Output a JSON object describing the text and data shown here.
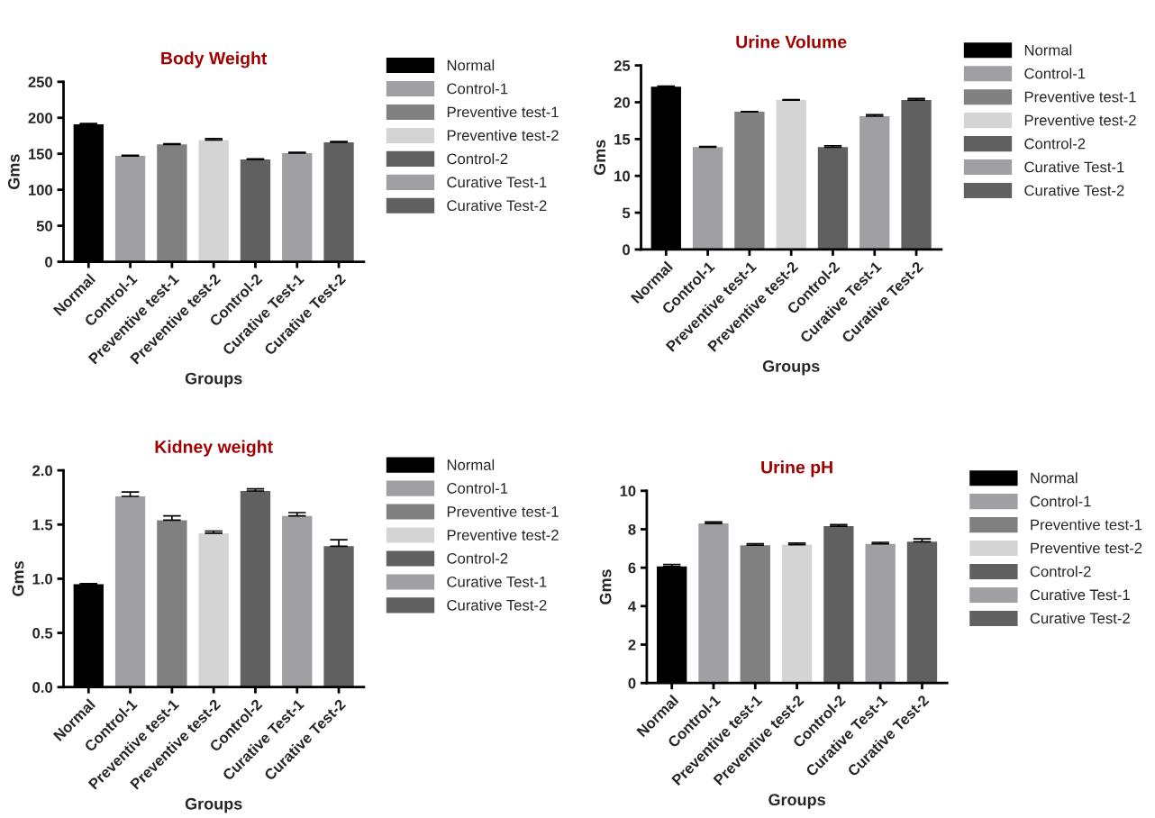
{
  "chart_data": [
    {
      "type": "bar",
      "title": "Body Weight",
      "xlabel": "Groups",
      "ylabel": "Gms",
      "categories": [
        "Normal",
        "Control-1",
        "Preventive test-1",
        "Preventive test-2",
        "Control-2",
        "Curative Test-1",
        "Curative Test-2"
      ],
      "ylim": [
        0,
        250
      ],
      "yticks": [
        0,
        50,
        100,
        150,
        200,
        250
      ],
      "legend": "right",
      "series": [
        {
          "name": "Normal",
          "color": "#000000",
          "values": [
            191,
            null,
            null,
            null,
            null,
            null,
            null
          ],
          "errors": [
            1,
            null,
            null,
            null,
            null,
            null,
            null
          ]
        },
        {
          "name": "Control-1",
          "color": "#a0a0a4",
          "values": [
            null,
            147,
            null,
            null,
            null,
            null,
            null
          ],
          "errors": [
            null,
            1,
            null,
            null,
            null,
            null,
            null
          ]
        },
        {
          "name": "Preventive test-1",
          "color": "#808080",
          "values": [
            null,
            null,
            163,
            null,
            null,
            null,
            null
          ],
          "errors": [
            null,
            null,
            1,
            null,
            null,
            null,
            null
          ]
        },
        {
          "name": "Preventive test-2",
          "color": "#d4d4d4",
          "values": [
            null,
            null,
            null,
            169,
            null,
            null,
            null
          ],
          "errors": [
            null,
            null,
            null,
            2,
            null,
            null,
            null
          ]
        },
        {
          "name": "Control-2",
          "color": "#606060",
          "values": [
            null,
            null,
            null,
            null,
            142,
            null,
            null
          ],
          "errors": [
            null,
            null,
            null,
            null,
            1,
            null,
            null
          ]
        },
        {
          "name": "Curative Test-1",
          "color": "#a0a0a4",
          "values": [
            null,
            null,
            null,
            null,
            null,
            151,
            null
          ],
          "errors": [
            null,
            null,
            null,
            null,
            null,
            1,
            null
          ]
        },
        {
          "name": "Curative Test-2",
          "color": "#606060",
          "values": [
            null,
            null,
            null,
            null,
            null,
            null,
            166
          ],
          "errors": [
            null,
            null,
            null,
            null,
            null,
            null,
            1
          ]
        }
      ]
    },
    {
      "type": "bar",
      "title": "Urine Volume",
      "xlabel": "Groups",
      "ylabel": "Gms",
      "categories": [
        "Normal",
        "Control-1",
        "Preventive test-1",
        "Preventive test-2",
        "Control-2",
        "Curative Test-1",
        "Curative Test-2"
      ],
      "ylim": [
        0,
        25
      ],
      "yticks": [
        0,
        5,
        10,
        15,
        20,
        25
      ],
      "legend": "right",
      "series": [
        {
          "name": "Normal",
          "color": "#000000",
          "values": [
            22.1,
            null,
            null,
            null,
            null,
            null,
            null
          ],
          "errors": [
            0.1,
            null,
            null,
            null,
            null,
            null,
            null
          ]
        },
        {
          "name": "Control-1",
          "color": "#a0a0a4",
          "values": [
            null,
            13.9,
            null,
            null,
            null,
            null,
            null
          ],
          "errors": [
            null,
            0.1,
            null,
            null,
            null,
            null,
            null
          ]
        },
        {
          "name": "Preventive test-1",
          "color": "#808080",
          "values": [
            null,
            null,
            18.7,
            null,
            null,
            null,
            null
          ],
          "errors": [
            null,
            null,
            0.05,
            null,
            null,
            null,
            null
          ]
        },
        {
          "name": "Preventive test-2",
          "color": "#d4d4d4",
          "values": [
            null,
            null,
            null,
            20.3,
            null,
            null,
            null
          ],
          "errors": [
            null,
            null,
            null,
            0.05,
            null,
            null,
            null
          ]
        },
        {
          "name": "Control-2",
          "color": "#606060",
          "values": [
            null,
            null,
            null,
            null,
            13.9,
            null,
            null
          ],
          "errors": [
            null,
            null,
            null,
            null,
            0.2,
            null,
            null
          ]
        },
        {
          "name": "Curative Test-1",
          "color": "#a0a0a4",
          "values": [
            null,
            null,
            null,
            null,
            null,
            18.1,
            null
          ],
          "errors": [
            null,
            null,
            null,
            null,
            null,
            0.2,
            null
          ]
        },
        {
          "name": "Curative Test-2",
          "color": "#606060",
          "values": [
            null,
            null,
            null,
            null,
            null,
            null,
            20.3
          ],
          "errors": [
            null,
            null,
            null,
            null,
            null,
            null,
            0.2
          ]
        }
      ]
    },
    {
      "type": "bar",
      "title": "Kidney weight",
      "xlabel": "Groups",
      "ylabel": "Gms",
      "categories": [
        "Normal",
        "Control-1",
        "Preventive test-1",
        "Preventive test-2",
        "Control-2",
        "Curative Test-1",
        "Curative Test-2"
      ],
      "ylim": [
        0,
        2
      ],
      "yticks": [
        {
          "value": 0,
          "label": "0.0"
        },
        0.5,
        {
          "value": 1,
          "label": "1.0"
        },
        1.5,
        {
          "value": 2,
          "label": "2.0"
        }
      ],
      "legend": "right",
      "series": [
        {
          "name": "Normal",
          "color": "#000000",
          "values": [
            0.95,
            null,
            null,
            null,
            null,
            null,
            null
          ],
          "errors": [
            0.005,
            null,
            null,
            null,
            null,
            null,
            null
          ]
        },
        {
          "name": "Control-1",
          "color": "#a0a0a4",
          "values": [
            null,
            1.76,
            null,
            null,
            null,
            null,
            null
          ],
          "errors": [
            null,
            0.04,
            null,
            null,
            null,
            null,
            null
          ]
        },
        {
          "name": "Preventive test-1",
          "color": "#808080",
          "values": [
            null,
            null,
            1.54,
            null,
            null,
            null,
            null
          ],
          "errors": [
            null,
            null,
            0.04,
            null,
            null,
            null,
            null
          ]
        },
        {
          "name": "Preventive test-2",
          "color": "#d4d4d4",
          "values": [
            null,
            null,
            null,
            1.42,
            null,
            null,
            null
          ],
          "errors": [
            null,
            null,
            null,
            0.02,
            null,
            null,
            null
          ]
        },
        {
          "name": "Control-2",
          "color": "#606060",
          "values": [
            null,
            null,
            null,
            null,
            1.81,
            null,
            null
          ],
          "errors": [
            null,
            null,
            null,
            null,
            0.02,
            null,
            null
          ]
        },
        {
          "name": "Curative Test-1",
          "color": "#a0a0a4",
          "values": [
            null,
            null,
            null,
            null,
            null,
            1.58,
            null
          ],
          "errors": [
            null,
            null,
            null,
            null,
            null,
            0.03,
            null
          ]
        },
        {
          "name": "Curative Test-2",
          "color": "#606060",
          "values": [
            null,
            null,
            null,
            null,
            null,
            null,
            1.3
          ],
          "errors": [
            null,
            null,
            null,
            null,
            null,
            null,
            0.06
          ]
        }
      ]
    },
    {
      "type": "bar",
      "title": "Urine pH",
      "xlabel": "Groups",
      "ylabel": "Gms",
      "categories": [
        "Normal",
        "Control-1",
        "Preventive test-1",
        "Preventive test-2",
        "Control-2",
        "Curative Test-1",
        "Curative Test-2"
      ],
      "ylim": [
        0,
        10
      ],
      "yticks": [
        0,
        2,
        4,
        6,
        8,
        10
      ],
      "legend": "right",
      "series": [
        {
          "name": "Normal",
          "color": "#000000",
          "values": [
            6.07,
            null,
            null,
            null,
            null,
            null,
            null
          ],
          "errors": [
            0.1,
            null,
            null,
            null,
            null,
            null,
            null
          ]
        },
        {
          "name": "Control-1",
          "color": "#a0a0a4",
          "values": [
            null,
            8.3,
            null,
            null,
            null,
            null,
            null
          ],
          "errors": [
            null,
            0.08,
            null,
            null,
            null,
            null,
            null
          ]
        },
        {
          "name": "Preventive test-1",
          "color": "#808080",
          "values": [
            null,
            null,
            7.17,
            null,
            null,
            null,
            null
          ],
          "errors": [
            null,
            null,
            0.08,
            null,
            null,
            null,
            null
          ]
        },
        {
          "name": "Preventive test-2",
          "color": "#d4d4d4",
          "values": [
            null,
            null,
            null,
            7.2,
            null,
            null,
            null
          ],
          "errors": [
            null,
            null,
            null,
            0.08,
            null,
            null,
            null
          ]
        },
        {
          "name": "Control-2",
          "color": "#606060",
          "values": [
            null,
            null,
            null,
            null,
            8.16,
            null,
            null
          ],
          "errors": [
            null,
            null,
            null,
            null,
            0.08,
            null,
            null
          ]
        },
        {
          "name": "Curative Test-1",
          "color": "#a0a0a4",
          "values": [
            null,
            null,
            null,
            null,
            null,
            7.24,
            null
          ],
          "errors": [
            null,
            null,
            null,
            null,
            null,
            0.08,
            null
          ]
        },
        {
          "name": "Curative Test-2",
          "color": "#606060",
          "values": [
            null,
            null,
            null,
            null,
            null,
            null,
            7.35
          ],
          "errors": [
            null,
            null,
            null,
            null,
            null,
            null,
            0.15
          ]
        }
      ]
    }
  ]
}
